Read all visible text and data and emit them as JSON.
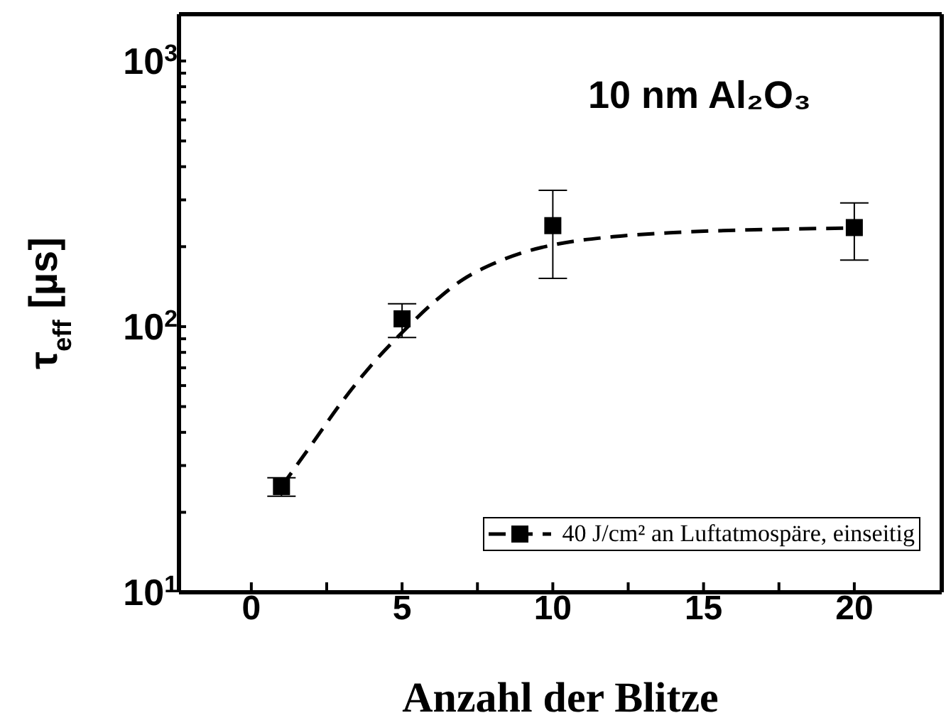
{
  "chart_data": {
    "type": "scatter",
    "xlabel": "Anzahl der Blitze",
    "ylabel": "τ$_{eff}$ [µs]",
    "annotations": [
      "10 nm Al₂O₃"
    ],
    "log": "y",
    "xlim": [
      -2.4,
      22.9
    ],
    "ylim": [
      10,
      1500
    ],
    "xticks": [
      0,
      {
        "value": 2.5,
        "label": null
      },
      5,
      {
        "value": 7.5,
        "label": null
      },
      10,
      {
        "value": 12.5,
        "label": null
      },
      15,
      {
        "value": 17.5,
        "label": null
      },
      20
    ],
    "yticks": [
      {
        "value": 10,
        "label": "10$^{1}$"
      },
      {
        "value": 20,
        "label": null
      },
      {
        "value": 30,
        "label": null
      },
      {
        "value": 40,
        "label": null
      },
      {
        "value": 50,
        "label": null
      },
      {
        "value": 60,
        "label": null
      },
      {
        "value": 70,
        "label": null
      },
      {
        "value": 80,
        "label": null
      },
      {
        "value": 90,
        "label": null
      },
      {
        "value": 100,
        "label": "10$^{2}$"
      },
      {
        "value": 200,
        "label": null
      },
      {
        "value": 300,
        "label": null
      },
      {
        "value": 400,
        "label": null
      },
      {
        "value": 500,
        "label": null
      },
      {
        "value": 600,
        "label": null
      },
      {
        "value": 700,
        "label": null
      },
      {
        "value": 800,
        "label": null
      },
      {
        "value": 900,
        "label": null
      },
      {
        "value": 1000,
        "label": "10$^{3}$"
      }
    ],
    "grid": false,
    "legend": "bottom right",
    "series": [
      {
        "name": "40 J/cm² an Luftatmospäre, einseitig",
        "color": "#000000",
        "marker": "square",
        "x": [
          1,
          5,
          10,
          20
        ],
        "values": [
          25,
          107,
          240,
          236
        ],
        "errors": [
          [
            23,
            27
          ],
          [
            91,
            122
          ],
          [
            152,
            326
          ],
          [
            178,
            292
          ]
        ]
      },
      {
        "type": "line",
        "color": "#000000",
        "line_style": "dashed",
        "marker": "none",
        "x": [
          1,
          2,
          3,
          4,
          5,
          6,
          7,
          8,
          9,
          10,
          12,
          14,
          17,
          20
        ],
        "values": [
          25,
          36,
          52,
          72,
          95,
          122,
          150,
          172,
          190,
          203,
          218,
          226,
          232,
          235
        ]
      }
    ]
  }
}
